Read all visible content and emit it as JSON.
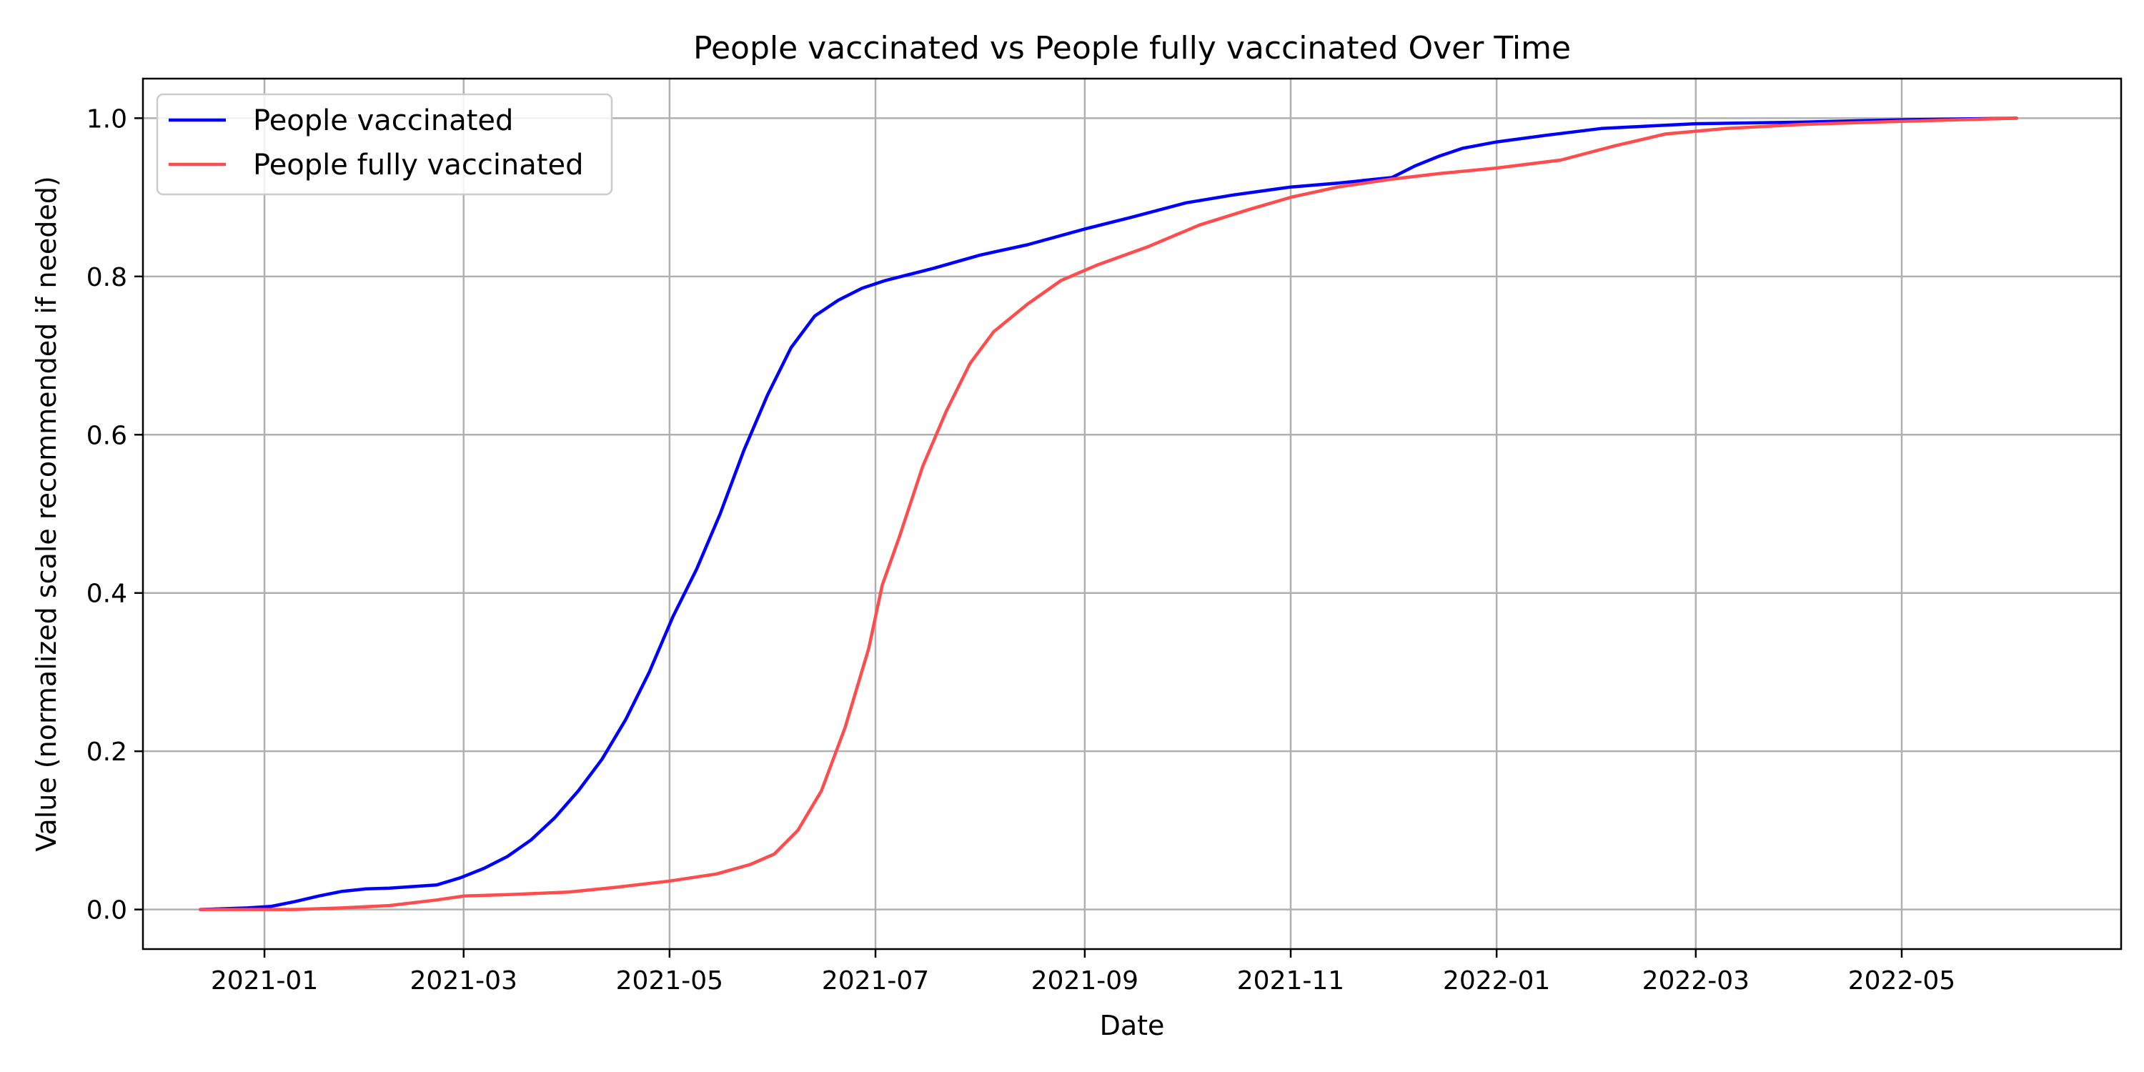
{
  "chart_data": {
    "type": "line",
    "title": "People vaccinated vs People fully vaccinated Over Time",
    "xlabel": "Date",
    "ylabel": "Value (normalized scale recommended if needed)",
    "xlim": [
      "2020-11-26",
      "2022-07-05"
    ],
    "ylim": [
      -0.05,
      1.05
    ],
    "x_ticks": [
      "2021-01",
      "2021-03",
      "2021-05",
      "2021-07",
      "2021-09",
      "2021-11",
      "2022-01",
      "2022-03",
      "2022-05"
    ],
    "y_ticks": [
      "0.0",
      "0.2",
      "0.4",
      "0.6",
      "0.8",
      "1.0"
    ],
    "grid": true,
    "legend": "top-left",
    "series": [
      {
        "name": "People vaccinated",
        "color": "#0000ff",
        "points": [
          [
            "2020-12-13",
            0.0
          ],
          [
            "2020-12-20",
            0.001
          ],
          [
            "2020-12-27",
            0.002
          ],
          [
            "2021-01-03",
            0.004
          ],
          [
            "2021-01-10",
            0.01
          ],
          [
            "2021-01-17",
            0.017
          ],
          [
            "2021-01-24",
            0.023
          ],
          [
            "2021-01-31",
            0.026
          ],
          [
            "2021-02-07",
            0.027
          ],
          [
            "2021-02-14",
            0.029
          ],
          [
            "2021-02-21",
            0.031
          ],
          [
            "2021-02-28",
            0.04
          ],
          [
            "2021-03-07",
            0.052
          ],
          [
            "2021-03-14",
            0.067
          ],
          [
            "2021-03-21",
            0.088
          ],
          [
            "2021-03-28",
            0.116
          ],
          [
            "2021-04-04",
            0.15
          ],
          [
            "2021-04-11",
            0.19
          ],
          [
            "2021-04-18",
            0.24
          ],
          [
            "2021-04-25",
            0.3
          ],
          [
            "2021-05-02",
            0.37
          ],
          [
            "2021-05-09",
            0.43
          ],
          [
            "2021-05-16",
            0.5
          ],
          [
            "2021-05-23",
            0.58
          ],
          [
            "2021-05-30",
            0.65
          ],
          [
            "2021-06-06",
            0.71
          ],
          [
            "2021-06-13",
            0.75
          ],
          [
            "2021-06-20",
            0.77
          ],
          [
            "2021-06-27",
            0.785
          ],
          [
            "2021-07-04",
            0.795
          ],
          [
            "2021-07-18",
            0.81
          ],
          [
            "2021-08-01",
            0.827
          ],
          [
            "2021-08-15",
            0.84
          ],
          [
            "2021-09-01",
            0.86
          ],
          [
            "2021-09-15",
            0.875
          ],
          [
            "2021-10-01",
            0.893
          ],
          [
            "2021-10-15",
            0.903
          ],
          [
            "2021-11-01",
            0.913
          ],
          [
            "2021-11-15",
            0.918
          ],
          [
            "2021-12-01",
            0.925
          ],
          [
            "2021-12-08",
            0.94
          ],
          [
            "2021-12-15",
            0.952
          ],
          [
            "2021-12-22",
            0.962
          ],
          [
            "2022-01-01",
            0.97
          ],
          [
            "2022-01-15",
            0.978
          ],
          [
            "2022-02-01",
            0.987
          ],
          [
            "2022-02-15",
            0.99
          ],
          [
            "2022-03-01",
            0.993
          ],
          [
            "2022-04-01",
            0.995
          ],
          [
            "2022-05-01",
            0.998
          ],
          [
            "2022-06-04",
            1.0
          ]
        ]
      },
      {
        "name": "People fully vaccinated",
        "color": "#ff4c4c",
        "points": [
          [
            "2020-12-13",
            0.0
          ],
          [
            "2020-12-27",
            0.0
          ],
          [
            "2021-01-10",
            0.0
          ],
          [
            "2021-01-24",
            0.002
          ],
          [
            "2021-02-07",
            0.005
          ],
          [
            "2021-02-21",
            0.012
          ],
          [
            "2021-03-01",
            0.017
          ],
          [
            "2021-03-15",
            0.019
          ],
          [
            "2021-04-01",
            0.022
          ],
          [
            "2021-04-15",
            0.028
          ],
          [
            "2021-05-01",
            0.036
          ],
          [
            "2021-05-15",
            0.045
          ],
          [
            "2021-05-25",
            0.057
          ],
          [
            "2021-06-01",
            0.07
          ],
          [
            "2021-06-08",
            0.1
          ],
          [
            "2021-06-15",
            0.15
          ],
          [
            "2021-06-22",
            0.23
          ],
          [
            "2021-06-29",
            0.33
          ],
          [
            "2021-07-03",
            0.41
          ],
          [
            "2021-07-08",
            0.47
          ],
          [
            "2021-07-15",
            0.56
          ],
          [
            "2021-07-22",
            0.63
          ],
          [
            "2021-07-29",
            0.69
          ],
          [
            "2021-08-05",
            0.73
          ],
          [
            "2021-08-15",
            0.765
          ],
          [
            "2021-08-25",
            0.795
          ],
          [
            "2021-09-05",
            0.815
          ],
          [
            "2021-09-20",
            0.838
          ],
          [
            "2021-10-05",
            0.865
          ],
          [
            "2021-10-20",
            0.885
          ],
          [
            "2021-11-01",
            0.9
          ],
          [
            "2021-11-15",
            0.913
          ],
          [
            "2021-12-01",
            0.923
          ],
          [
            "2021-12-15",
            0.93
          ],
          [
            "2022-01-01",
            0.937
          ],
          [
            "2022-01-20",
            0.947
          ],
          [
            "2022-02-05",
            0.965
          ],
          [
            "2022-02-20",
            0.98
          ],
          [
            "2022-03-10",
            0.987
          ],
          [
            "2022-04-01",
            0.992
          ],
          [
            "2022-05-01",
            0.996
          ],
          [
            "2022-06-04",
            1.0
          ]
        ]
      }
    ]
  }
}
